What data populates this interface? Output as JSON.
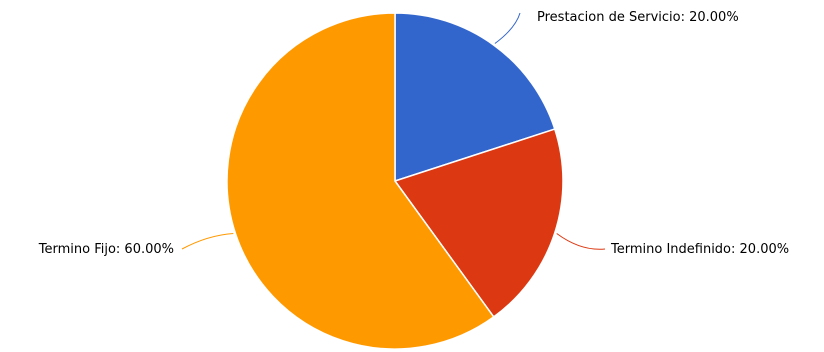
{
  "chart_data": {
    "type": "pie",
    "title": "",
    "legend": "none",
    "labels": [
      "Prestacion de Servicio: 20.00%",
      "Termino Indefinido: 20.00%",
      "Termino Fijo: 60.00%"
    ],
    "categories": [
      "Prestacion de Servicio",
      "Termino Indefinido",
      "Termino Fijo"
    ],
    "values": [
      20.0,
      20.0,
      60.0
    ],
    "colors": [
      "#3366cc",
      "#dc3912",
      "#ff9900"
    ]
  }
}
